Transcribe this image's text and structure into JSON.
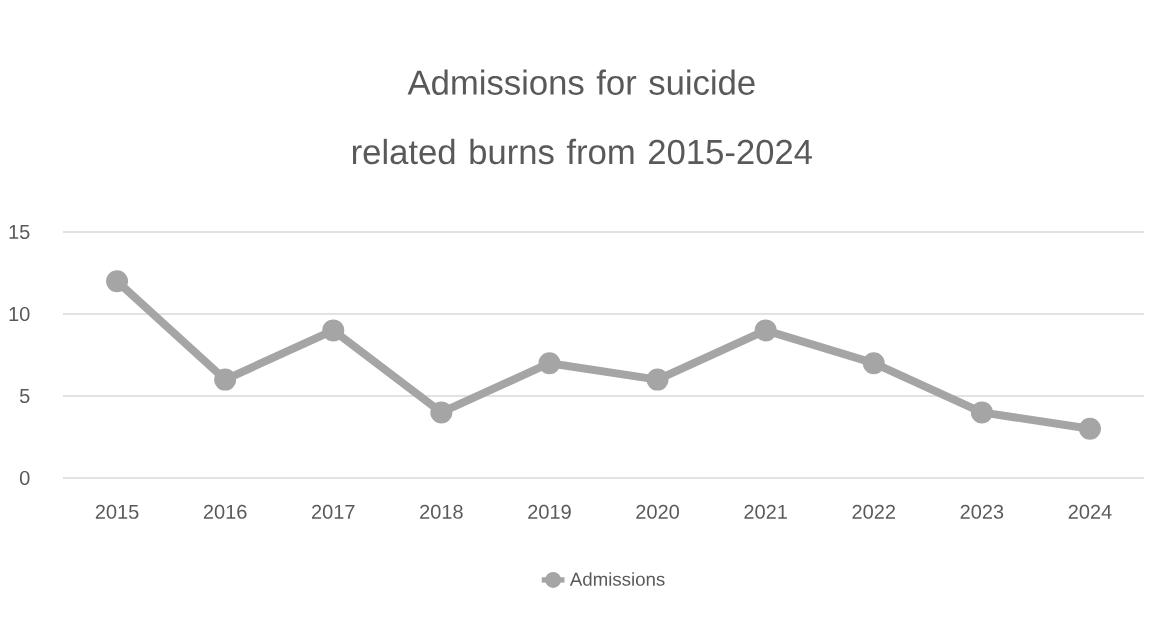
{
  "chart_data": {
    "type": "line",
    "title": "Admissions for suicide related burns from 2015-2024",
    "categories": [
      "2015",
      "2016",
      "2017",
      "2018",
      "2019",
      "2020",
      "2021",
      "2022",
      "2023",
      "2024"
    ],
    "series": [
      {
        "name": "Admissions",
        "color": "#a5a5a5",
        "values": [
          12,
          6,
          9,
          4,
          7,
          6,
          9,
          7,
          4,
          3
        ]
      }
    ],
    "ylim": [
      0,
      15
    ],
    "yticks": [
      0,
      5,
      10,
      15
    ],
    "grid": "y",
    "legend": "bottom",
    "marker": "circle",
    "line_style": "solid"
  }
}
